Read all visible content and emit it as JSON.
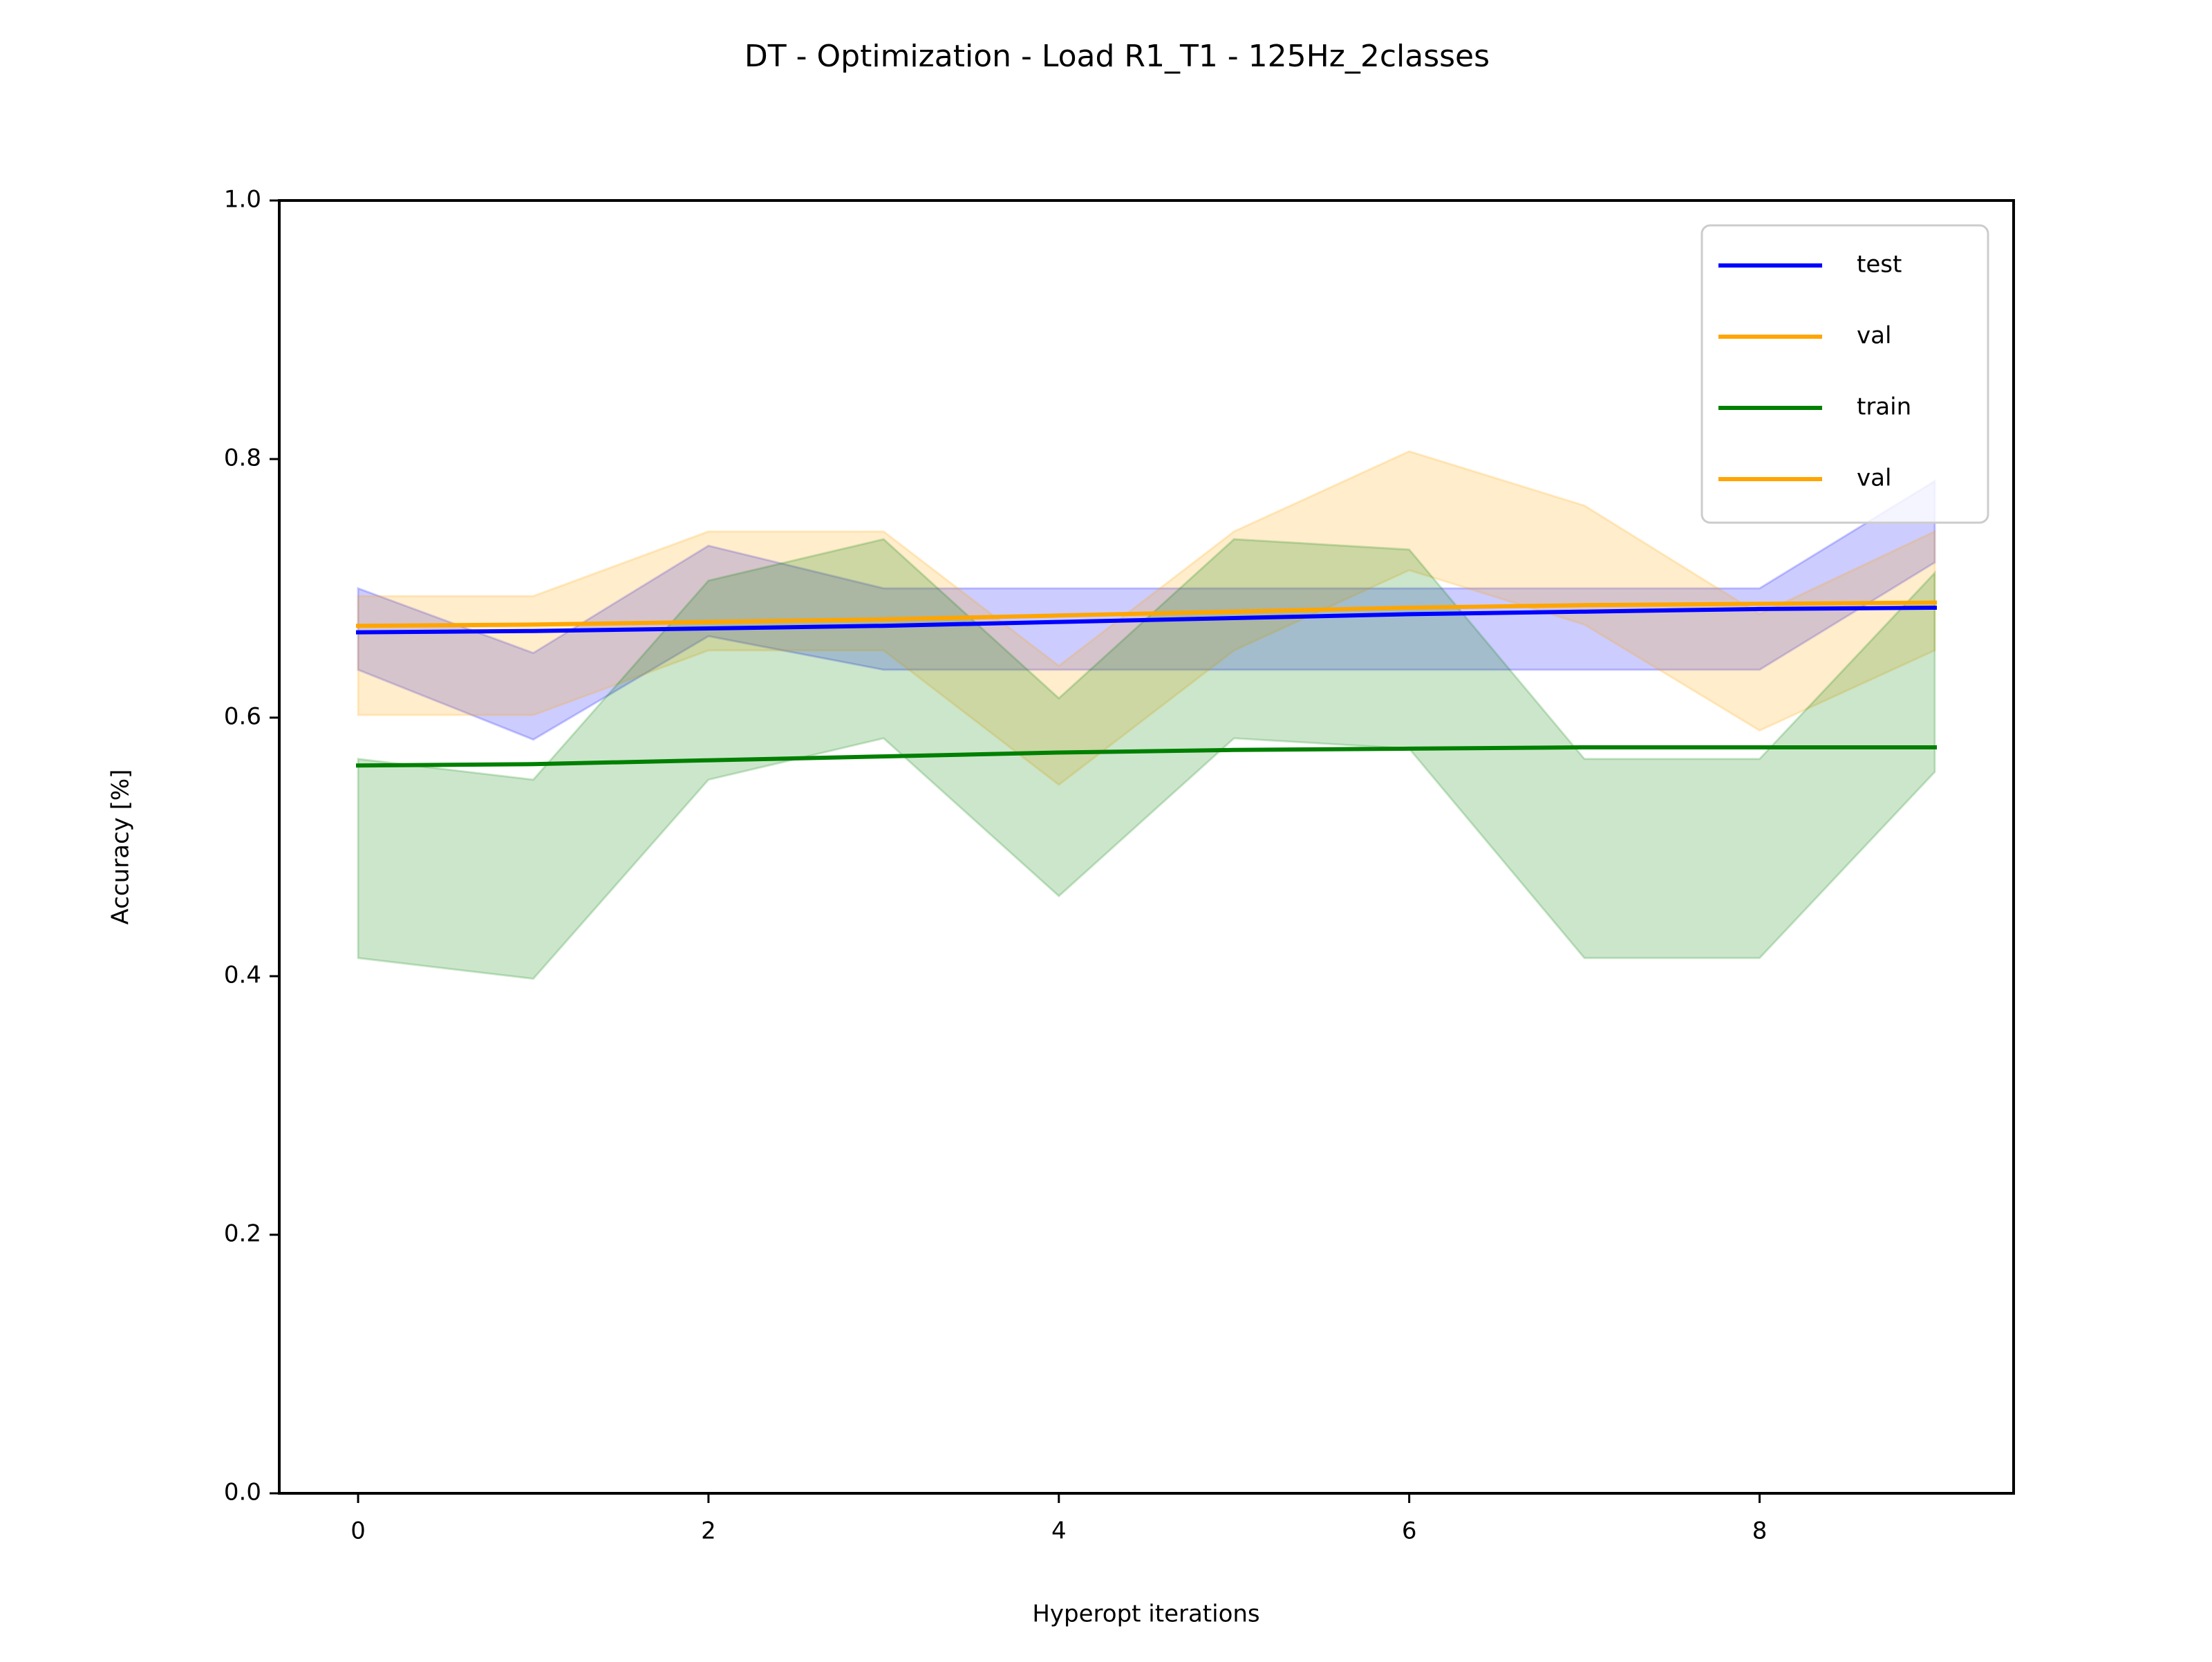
{
  "chart_data": {
    "type": "line",
    "title": "DT - Optimization - Load R1_T1 - 125Hz_2classes",
    "xlabel": "Hyperopt iterations",
    "ylabel": "Accuracy [%]",
    "xlim": [
      -0.45,
      9.45
    ],
    "ylim": [
      0.0,
      1.0
    ],
    "xticks": [
      0,
      2,
      4,
      6,
      8
    ],
    "xtick_labels": [
      "0",
      "2",
      "4",
      "6",
      "8"
    ],
    "yticks": [
      0.0,
      0.2,
      0.4,
      0.6,
      0.8,
      1.0
    ],
    "ytick_labels": [
      "0.0",
      "0.2",
      "0.4",
      "0.6",
      "0.8",
      "1.0"
    ],
    "grid": false,
    "legend_position": "top-right",
    "x": [
      0,
      1,
      2,
      3,
      4,
      5,
      6,
      7,
      8,
      9
    ],
    "bands": [
      {
        "name": "test",
        "color": "#0000ff",
        "upper": [
          0.7,
          0.65,
          0.733,
          0.7,
          0.7,
          0.7,
          0.7,
          0.7,
          0.7,
          0.783
        ],
        "lower": [
          0.637,
          0.583,
          0.663,
          0.637,
          0.637,
          0.637,
          0.637,
          0.637,
          0.637,
          0.72
        ]
      },
      {
        "name": "val",
        "color": "#ffa500",
        "upper": [
          0.694,
          0.694,
          0.744,
          0.744,
          0.64,
          0.744,
          0.806,
          0.764,
          0.68,
          0.744
        ],
        "lower": [
          0.602,
          0.602,
          0.652,
          0.652,
          0.548,
          0.652,
          0.714,
          0.672,
          0.59,
          0.652
        ]
      },
      {
        "name": "train",
        "color": "#008000",
        "upper": [
          0.568,
          0.552,
          0.706,
          0.738,
          0.615,
          0.738,
          0.73,
          0.568,
          0.568,
          0.712
        ],
        "lower": [
          0.414,
          0.398,
          0.552,
          0.584,
          0.462,
          0.584,
          0.576,
          0.414,
          0.414,
          0.558
        ]
      }
    ],
    "series": [
      {
        "name": "train",
        "color": "#008000",
        "values": [
          0.563,
          0.564,
          0.567,
          0.57,
          0.573,
          0.575,
          0.576,
          0.577,
          0.577,
          0.577
        ]
      },
      {
        "name": "val",
        "color": "#ffa500",
        "values": [
          0.671,
          0.672,
          0.674,
          0.676,
          0.679,
          0.682,
          0.685,
          0.687,
          0.688,
          0.689
        ]
      },
      {
        "name": "test",
        "color": "#0000ff",
        "values": [
          0.666,
          0.667,
          0.669,
          0.671,
          0.674,
          0.677,
          0.68,
          0.682,
          0.684,
          0.685
        ]
      }
    ],
    "legend": [
      {
        "label": "test",
        "color": "#0000ff"
      },
      {
        "label": "val",
        "color": "#ffa500"
      },
      {
        "label": "train",
        "color": "#008000"
      },
      {
        "label": "val",
        "color": "#ffa500"
      }
    ]
  }
}
